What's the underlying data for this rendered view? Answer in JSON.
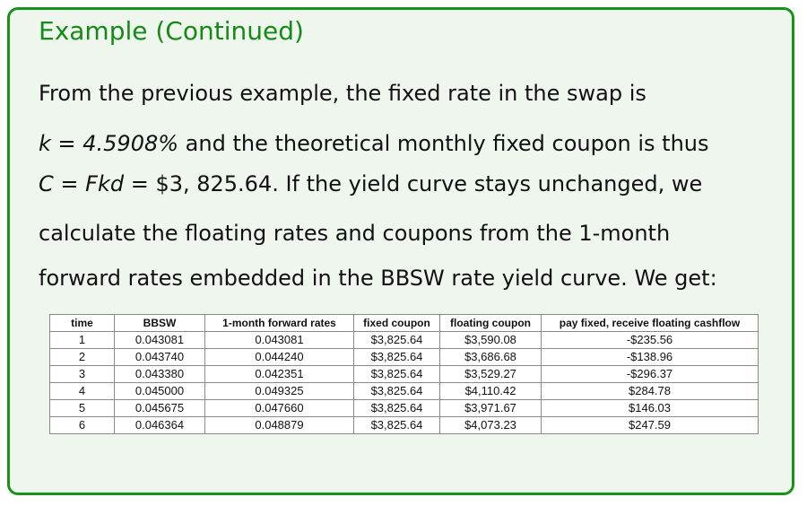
{
  "title": "Example (Continued)",
  "text": {
    "line1": "From the previous example, the fixed rate in the swap is",
    "line2_math": "k = 4.5908%",
    "line2_rest": " and the theoretical monthly fixed coupon is thus",
    "line3_math_lhs": "C",
    "line3_math_eq1": " = ",
    "line3_math_mid": "Fkd",
    "line3_math_eq2": " = $3, 825.64",
    "line3_rest": ". If the yield curve stays unchanged, we",
    "line4": "calculate the floating rates and coupons from the 1-month",
    "line5": "forward rates embedded in the BBSW rate yield curve. We get:"
  },
  "table": {
    "headers": [
      "time",
      "BBSW",
      "1-month forward rates",
      "fixed coupon",
      "floating coupon",
      "pay fixed, receive floating cashflow"
    ],
    "rows": [
      [
        "1",
        "0.043081",
        "0.043081",
        "$3,825.64",
        "$3,590.08",
        "-$235.56"
      ],
      [
        "2",
        "0.043740",
        "0.044240",
        "$3,825.64",
        "$3,686.68",
        "-$138.96"
      ],
      [
        "3",
        "0.043380",
        "0.042351",
        "$3,825.64",
        "$3,529.27",
        "-$296.37"
      ],
      [
        "4",
        "0.045000",
        "0.049325",
        "$3,825.64",
        "$4,110.42",
        "$284.78"
      ],
      [
        "5",
        "0.045675",
        "0.047660",
        "$3,825.64",
        "$3,971.67",
        "$146.03"
      ],
      [
        "6",
        "0.046364",
        "0.048879",
        "$3,825.64",
        "$4,073.23",
        "$247.59"
      ]
    ]
  },
  "colors": {
    "frame": "#179417",
    "title": "#168a16",
    "background": "#eef6ee"
  }
}
